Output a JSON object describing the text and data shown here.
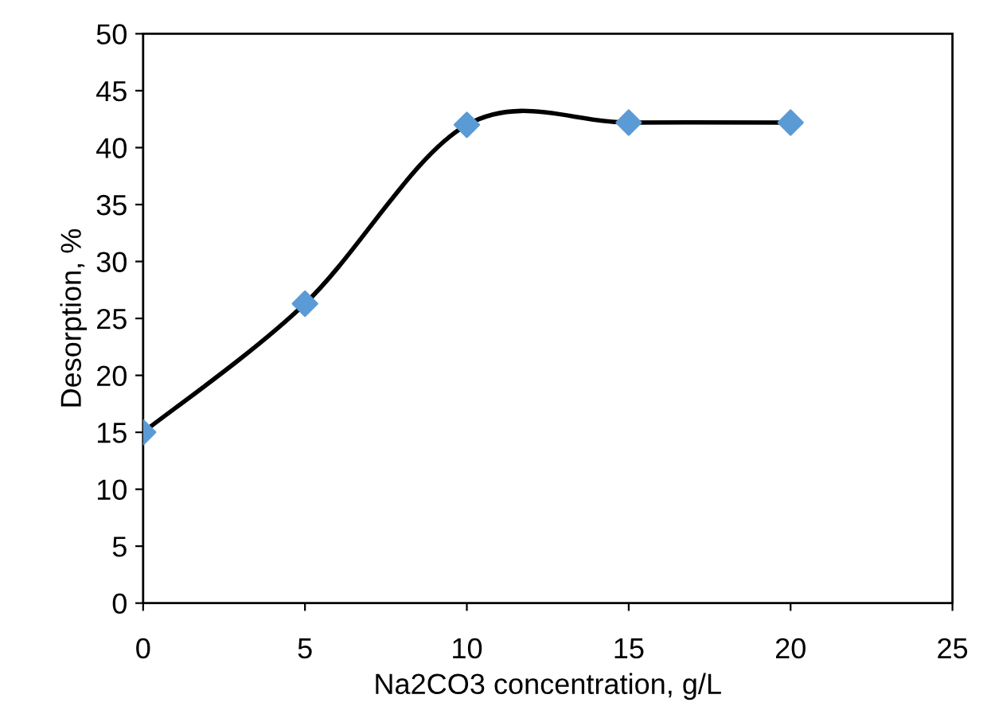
{
  "chart_data": {
    "type": "scatter",
    "xlabel": "Na2CO3 concentration, g/L",
    "ylabel": "Desorption, %",
    "x": [
      0,
      5,
      10,
      15,
      20
    ],
    "series": [
      {
        "type": "line",
        "color": "#000000",
        "values": [
          15,
          26.3,
          42,
          42.2,
          42.2
        ],
        "marker": "none",
        "line_style": "solid"
      },
      {
        "color": "#5b9bd5",
        "values": [
          15,
          26.3,
          42,
          42.2,
          42.2
        ],
        "marker": "diamond"
      }
    ],
    "xlim": [
      0,
      25
    ],
    "xticks": [
      0,
      5,
      10,
      15,
      20,
      25
    ],
    "ylim": [
      0,
      50
    ],
    "yticks": [
      0,
      5,
      10,
      15,
      20,
      25,
      30,
      35,
      40,
      45,
      50
    ],
    "grid": false,
    "legend": false
  }
}
